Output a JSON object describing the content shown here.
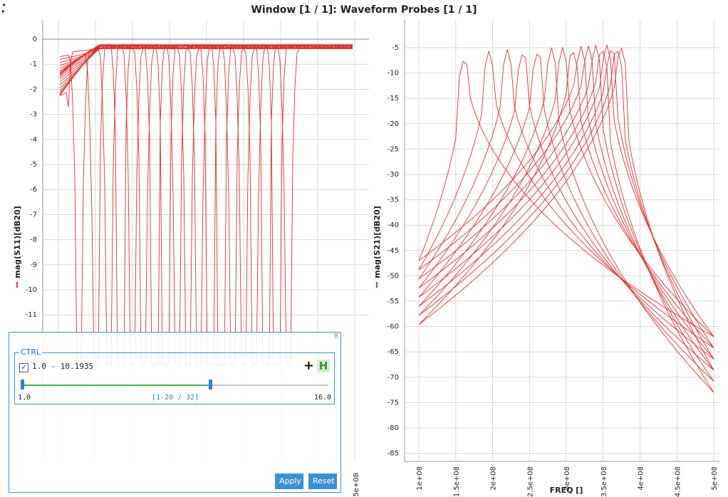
{
  "window_title": "Window [1 / 1]: Waveform Probes [1 / 1]",
  "colors": {
    "trace": "#e03030",
    "accent": "#3d8fd4",
    "slider_fill": "#38b64a",
    "grid": "#d8d8d8"
  },
  "chart_data": [
    {
      "type": "line",
      "ylabel": "mag(S11)[dB20]",
      "ylim": [
        -12.4,
        0.5
      ],
      "yticks": [
        0,
        -1,
        -2,
        -3,
        -4,
        -5,
        -6,
        -7,
        -8,
        -9,
        -10,
        -11
      ],
      "xticks": [
        "5e+08"
      ],
      "series_count": 20,
      "note_series_behavior": "passband near -0.3 dB with deep resonant notches dropping below -12 dB",
      "series": [
        {
          "name": "",
          "notch_x": 105000000.0
        },
        {
          "name": "",
          "notch_x": 128000000.0
        },
        {
          "name": "",
          "notch_x": 150000000.0
        },
        {
          "name": "",
          "notch_x": 168000000.0
        },
        {
          "name": "",
          "notch_x": 184000000.0
        },
        {
          "name": "",
          "notch_x": 200000000.0
        },
        {
          "name": "",
          "notch_x": 215000000.0
        },
        {
          "name": "",
          "notch_x": 230000000.0
        },
        {
          "name": "",
          "notch_x": 245000000.0
        },
        {
          "name": "",
          "notch_x": 260000000.0
        },
        {
          "name": "",
          "notch_x": 275000000.0
        },
        {
          "name": "",
          "notch_x": 290000000.0
        },
        {
          "name": "",
          "notch_x": 305000000.0
        },
        {
          "name": "",
          "notch_x": 320000000.0
        },
        {
          "name": "",
          "notch_x": 335000000.0
        },
        {
          "name": "",
          "notch_x": 350000000.0
        },
        {
          "name": "",
          "notch_x": 365000000.0
        },
        {
          "name": "",
          "notch_x": 380000000.0
        },
        {
          "name": "",
          "notch_x": 395000000.0
        },
        {
          "name": "",
          "notch_x": 410000000.0
        }
      ]
    },
    {
      "type": "line",
      "ylabel": "mag(S21)[dB20]",
      "xlabel": "FREQ []",
      "ylim": [
        -86,
        -3
      ],
      "xlim": [
        100000000.0,
        500000000.0
      ],
      "yticks": [
        -5,
        -10,
        -15,
        -20,
        -25,
        -30,
        -35,
        -40,
        -45,
        -50,
        -55,
        -60,
        -65,
        -70,
        -75,
        -80,
        -85
      ],
      "xticks": [
        "1e+08",
        "1.5e+08",
        "2e+08",
        "2.5e+08",
        "3e+08",
        "3.5e+08",
        "4e+08",
        "4.5e+08",
        "5e+08"
      ],
      "series_count": 20,
      "peaks": [
        {
          "x": 162000000.0,
          "y": -6.5
        },
        {
          "x": 195000000.0,
          "y": -5.6
        },
        {
          "x": 220000000.0,
          "y": -5.3
        },
        {
          "x": 242000000.0,
          "y": -5.2
        },
        {
          "x": 262000000.0,
          "y": -5.1
        },
        {
          "x": 280000000.0,
          "y": -5.0
        },
        {
          "x": 295000000.0,
          "y": -4.9
        },
        {
          "x": 308000000.0,
          "y": -4.8
        },
        {
          "x": 320000000.0,
          "y": -4.7
        },
        {
          "x": 330000000.0,
          "y": -4.6
        },
        {
          "x": 340000000.0,
          "y": -4.5
        },
        {
          "x": 348000000.0,
          "y": -4.5
        },
        {
          "x": 355000000.0,
          "y": -4.4
        },
        {
          "x": 362000000.0,
          "y": -4.4
        },
        {
          "x": 368000000.0,
          "y": -4.5
        },
        {
          "x": 374000000.0,
          "y": -4.5
        }
      ]
    }
  ],
  "control_panel": {
    "group_title": "CTRL",
    "checked": "✓",
    "range_label": "1.0 - 10.1935",
    "plus_icon": "+",
    "h_icon": "H",
    "min_label": "1.0",
    "mid_label": "[1-20 / 32]",
    "max_label": "16.0",
    "slider_value_fraction": 0.613,
    "apply_label": "Apply",
    "reset_label": "Reset"
  }
}
